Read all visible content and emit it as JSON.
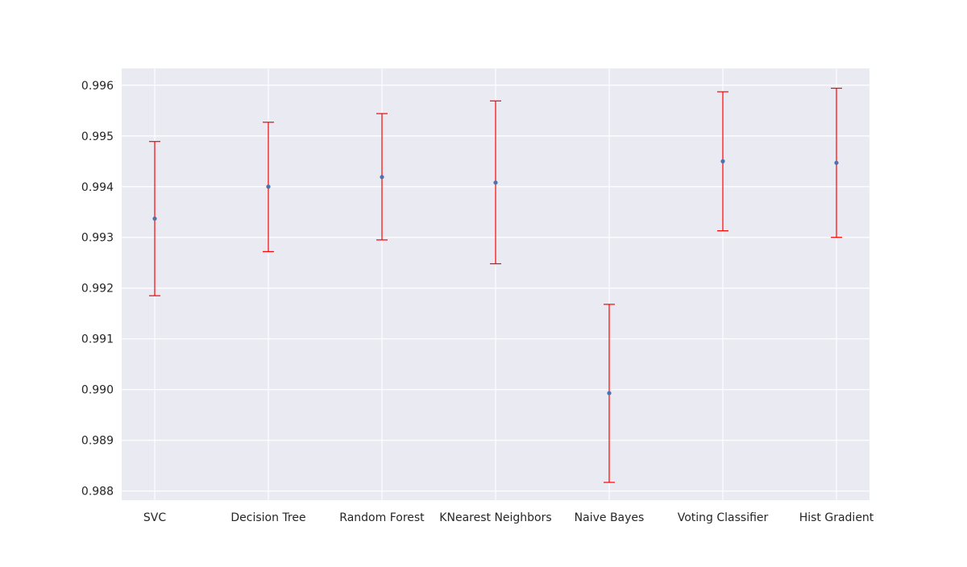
{
  "chart_data": {
    "type": "scatter",
    "categories": [
      "SVC",
      "Decision Tree",
      "Random Forest",
      "KNearest Neighbors",
      "Naive Bayes",
      "Voting Classifier",
      "Hist Gradient"
    ],
    "values": [
      0.99337,
      0.994,
      0.99419,
      0.99408,
      0.98993,
      0.9945,
      0.99447
    ],
    "error_lower": [
      0.99185,
      0.99272,
      0.99295,
      0.99248,
      0.98817,
      0.99313,
      0.993
    ],
    "error_upper": [
      0.99489,
      0.99527,
      0.99544,
      0.99569,
      0.99168,
      0.99587,
      0.99594
    ],
    "ylim": [
      0.98782,
      0.99633
    ],
    "yticks": [
      "0.988",
      "0.989",
      "0.990",
      "0.991",
      "0.992",
      "0.993",
      "0.994",
      "0.995",
      "0.996"
    ],
    "ytick_values": [
      0.988,
      0.989,
      0.99,
      0.991,
      0.992,
      0.993,
      0.994,
      0.995,
      0.996
    ],
    "title": "",
    "xlabel": "",
    "ylabel": "",
    "grid": true,
    "colors": {
      "background": "#eaeaf2",
      "grid": "#ffffff",
      "point": "#4c72b0",
      "errorbar": "#ff0000",
      "text": "#262626"
    }
  }
}
